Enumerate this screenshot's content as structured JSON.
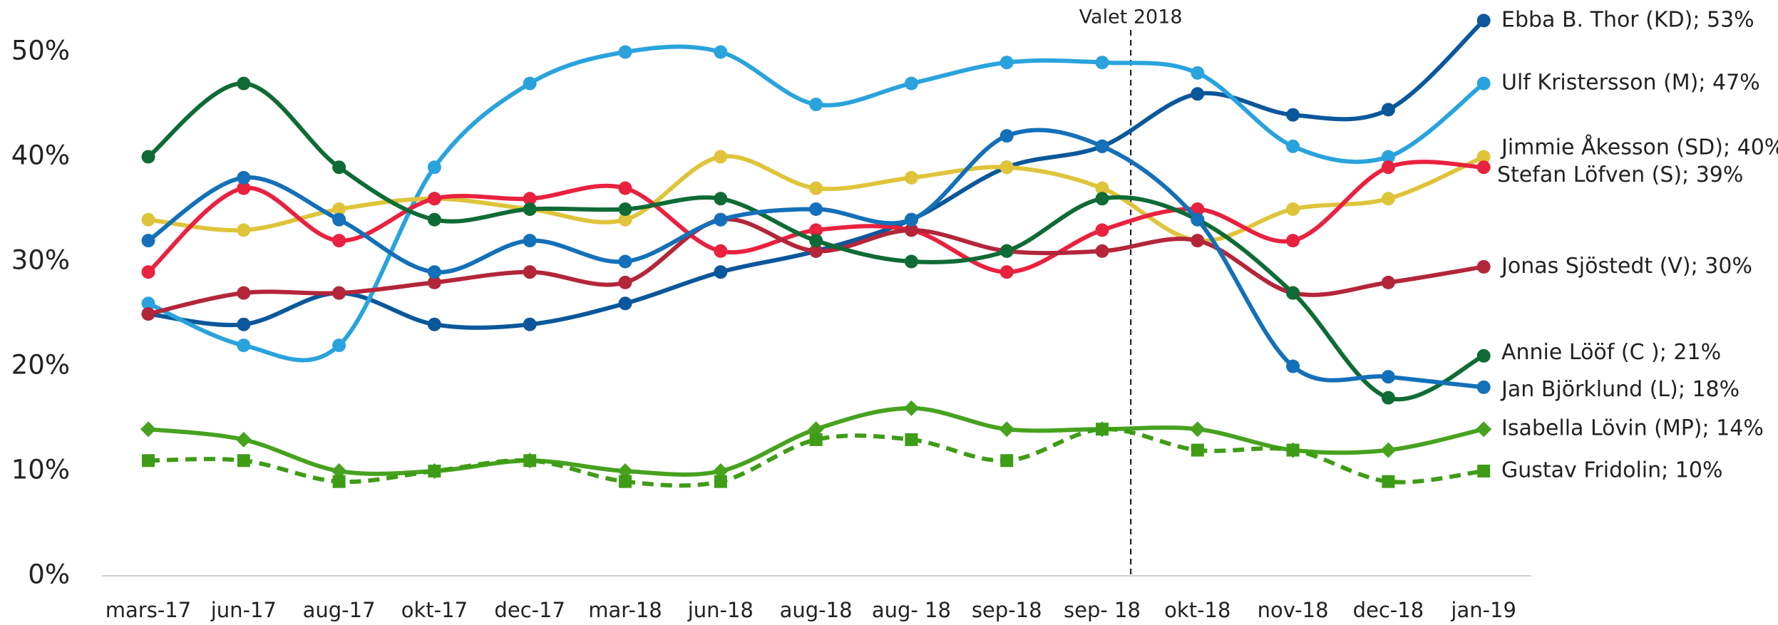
{
  "chart_data": {
    "type": "line",
    "categories": [
      "mars-17",
      "jun-17",
      "aug-17",
      "okt-17",
      "dec-17",
      "mar-18",
      "jun-18",
      "aug-18",
      "aug- 18",
      "sep-18",
      "sep- 18",
      "okt-18",
      "nov-18",
      "dec-18",
      "jan-19"
    ],
    "ylim": [
      0,
      50
    ],
    "yticks": [
      {
        "value": 0,
        "label": "0%"
      },
      {
        "value": 10,
        "label": "10%"
      },
      {
        "value": 20,
        "label": "20%"
      },
      {
        "value": 30,
        "label": "30%"
      },
      {
        "value": 40,
        "label": "40%"
      },
      {
        "value": 50,
        "label": "50%"
      }
    ],
    "smooth": true,
    "annotation": "Valet 2018",
    "series": [
      {
        "name": "Ebba B. Thor (KD); 53%",
        "color": "#0b579b",
        "marker": "circle",
        "dashed": false,
        "values": [
          25,
          24,
          27,
          24,
          24,
          26,
          29,
          31,
          34,
          39,
          41,
          46,
          44,
          44.5,
          53
        ]
      },
      {
        "name": "Ulf Kristersson (M); 47%",
        "color": "#2aa3dd",
        "marker": "circle",
        "dashed": false,
        "values": [
          26,
          22,
          22,
          39,
          47,
          50,
          50,
          45,
          47,
          49,
          49,
          48,
          41,
          40,
          47
        ]
      },
      {
        "name": "Jimmie Åkesson (SD); 40%",
        "color": "#dfc43b",
        "marker": "circle",
        "dashed": false,
        "values": [
          34,
          33,
          35,
          36,
          35,
          34,
          40,
          37,
          38,
          39,
          37,
          32,
          35,
          36,
          40
        ]
      },
      {
        "name": "Stefan Löfven (S); 39%",
        "color": "#e8223f",
        "marker": "circle",
        "dashed": false,
        "values": [
          29,
          37,
          32,
          36,
          36,
          37,
          31,
          33,
          33,
          29,
          33,
          35,
          32,
          39,
          39
        ]
      },
      {
        "name": "Jonas Sjöstedt (V); 30%",
        "color": "#b3263a",
        "marker": "circle",
        "dashed": false,
        "values": [
          25,
          27,
          27,
          28,
          29,
          28,
          34,
          31,
          33,
          31,
          31,
          32,
          27,
          28,
          29.5
        ]
      },
      {
        "name": "Annie Lööf (C ); 21%",
        "color": "#0f6b35",
        "marker": "circle",
        "dashed": false,
        "values": [
          40,
          47,
          39,
          34,
          35,
          35,
          36,
          32,
          30,
          31,
          36,
          34,
          27,
          17,
          21
        ]
      },
      {
        "name": "Jan Björklund (L); 18%",
        "color": "#1470b8",
        "marker": "circle",
        "dashed": false,
        "values": [
          32,
          38,
          34,
          29,
          32,
          30,
          34,
          35,
          34,
          42,
          41,
          34,
          20,
          19,
          18
        ]
      },
      {
        "name": "Isabella Lövin (MP); 14%",
        "color": "#47a21f",
        "marker": "diamond",
        "dashed": false,
        "values": [
          14,
          13,
          10,
          10,
          11,
          10,
          10,
          14,
          16,
          14,
          14,
          14,
          12,
          12,
          14
        ]
      },
      {
        "name": "Gustav Fridolin; 10%",
        "color": "#3f9c17",
        "marker": "square",
        "dashed": true,
        "values": [
          11,
          11,
          9,
          10,
          11,
          9,
          9,
          13,
          13,
          11,
          14,
          12,
          12,
          9,
          10
        ]
      }
    ]
  }
}
